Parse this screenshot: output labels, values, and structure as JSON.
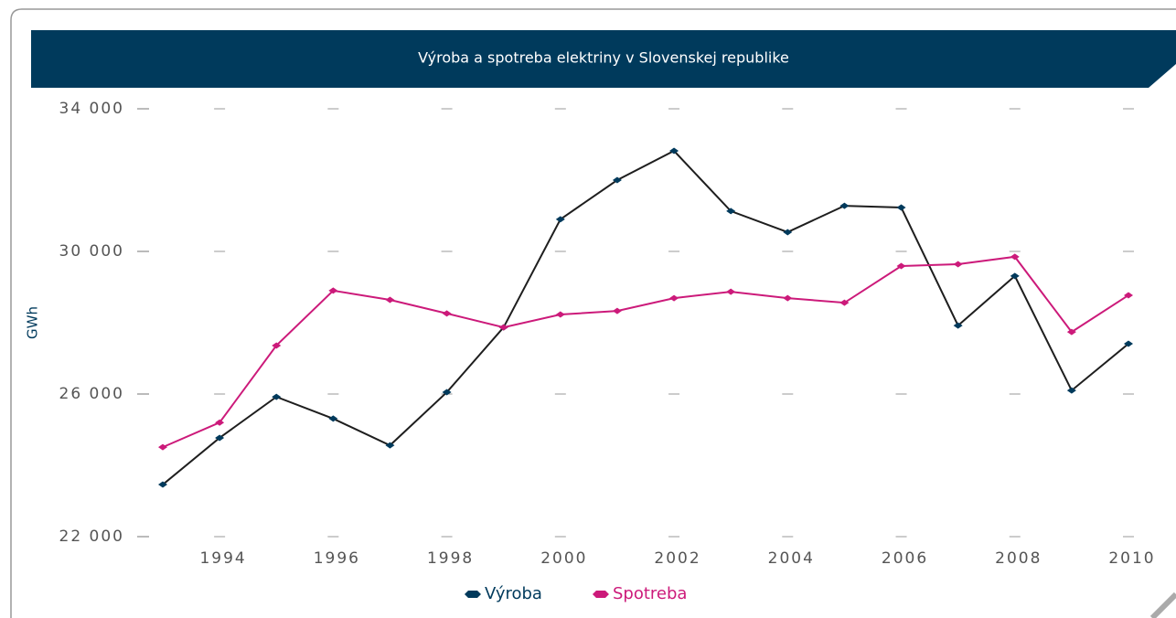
{
  "chart_data": {
    "type": "line",
    "title": "Výroba a spotreba elektriny v Slovenskej republike",
    "y_label": "GWh",
    "x": [
      1993,
      1994,
      1995,
      1996,
      1997,
      1998,
      1999,
      2000,
      2001,
      2002,
      2003,
      2004,
      2005,
      2006,
      2007,
      2008,
      2009,
      2010
    ],
    "xlim": [
      1993,
      2010
    ],
    "xticks": [
      1994,
      1996,
      1998,
      2000,
      2002,
      2004,
      2006,
      2008,
      2010
    ],
    "ylim": [
      22000,
      34000
    ],
    "yticks": [
      {
        "value": 22000,
        "label": "22 000"
      },
      {
        "value": 26000,
        "label": "26 000"
      },
      {
        "value": 30000,
        "label": "30 000"
      },
      {
        "value": 34000,
        "label": "34 000"
      }
    ],
    "grid": true,
    "legend": "bottom",
    "series": [
      {
        "name": "Výroba",
        "color": "#003a5c",
        "line_color": "#1e1e1e",
        "values": [
          23460,
          24770,
          25920,
          25310,
          24560,
          26050,
          27870,
          30900,
          32000,
          32820,
          31130,
          30540,
          31280,
          31230,
          27920,
          29310,
          26100,
          27410
        ]
      },
      {
        "name": "Spotreba",
        "color": "#cc1a7a",
        "line_color": "#cc1a7a",
        "values": [
          24510,
          25200,
          27360,
          28900,
          28640,
          28260,
          27870,
          28230,
          28330,
          28690,
          28870,
          28690,
          28560,
          29590,
          29640,
          29850,
          27740,
          28770
        ]
      }
    ]
  }
}
